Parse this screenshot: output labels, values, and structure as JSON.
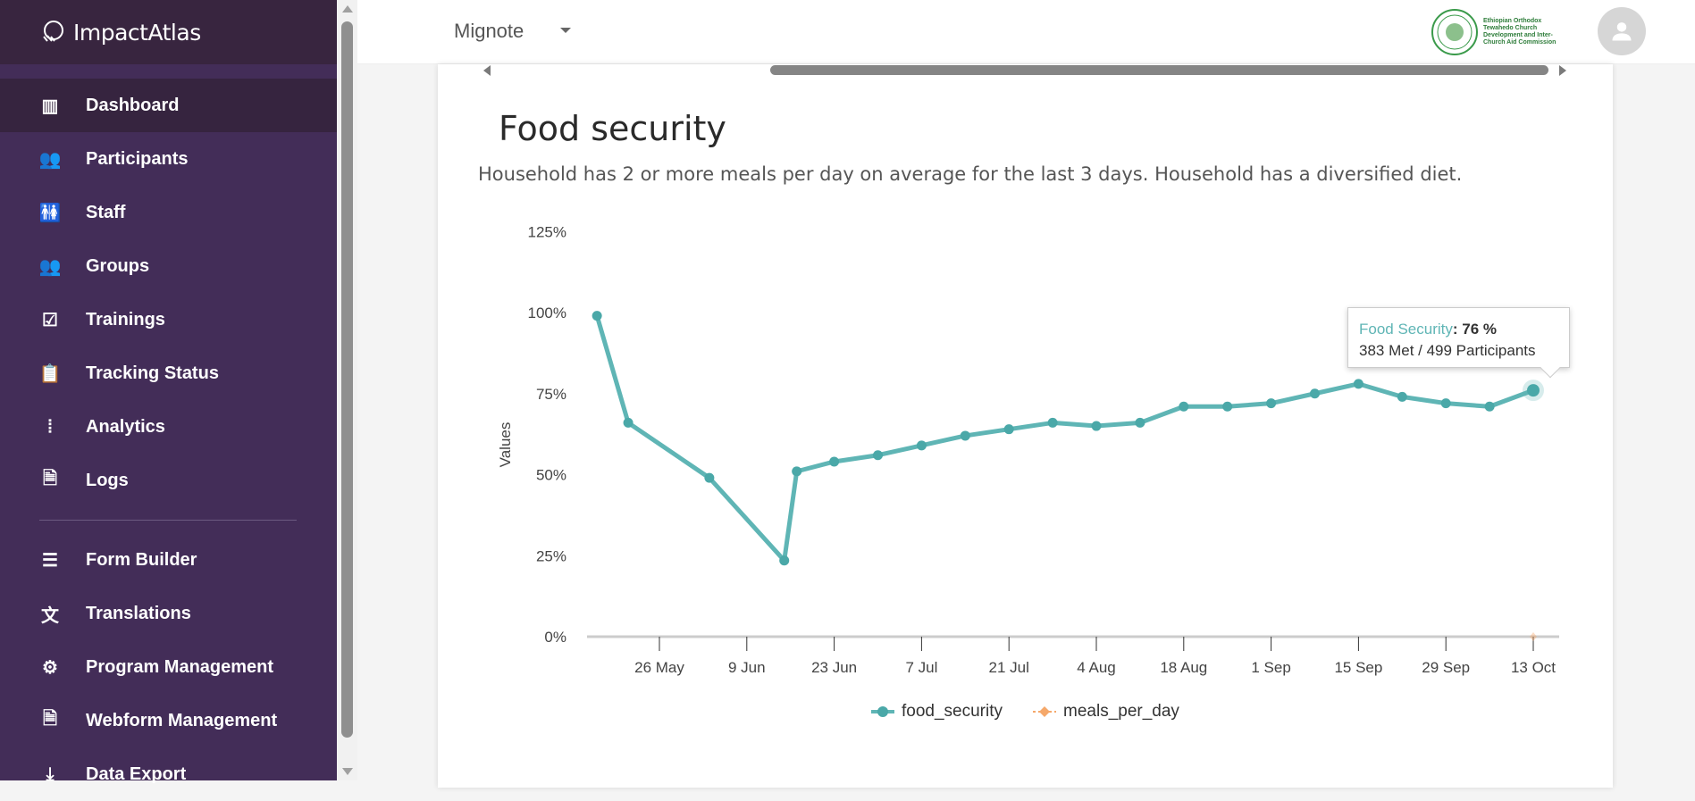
{
  "app": {
    "name": "ImpactAtlas"
  },
  "sidebar": {
    "items": [
      {
        "label": "Dashboard",
        "icon": "bar-chart-icon",
        "active": true
      },
      {
        "label": "Participants",
        "icon": "people-icon"
      },
      {
        "label": "Staff",
        "icon": "staff-icon"
      },
      {
        "label": "Groups",
        "icon": "groups-icon"
      },
      {
        "label": "Trainings",
        "icon": "clipboard-check-icon"
      },
      {
        "label": "Tracking Status",
        "icon": "clipboard-icon"
      },
      {
        "label": "Analytics",
        "icon": "waveform-icon"
      },
      {
        "label": "Logs",
        "icon": "document-icon"
      }
    ],
    "items2": [
      {
        "label": "Form Builder",
        "icon": "list-icon"
      },
      {
        "label": "Translations",
        "icon": "translate-icon"
      },
      {
        "label": "Program Management",
        "icon": "gear-icon"
      },
      {
        "label": "Webform Management",
        "icon": "document-icon"
      },
      {
        "label": "Data Export",
        "icon": "download-icon"
      }
    ]
  },
  "header": {
    "program": "Mignote",
    "org_logo_text": "Ethiopian Orthodox Tewahedo Church Development and Inter-Church Aid Commission"
  },
  "section": {
    "title": "Food security",
    "description": "Household has 2 or more meals per day on average for the last 3 days. Household has a diversified diet."
  },
  "tooltip": {
    "series": "Food Security",
    "value": "76 %",
    "detail": "383 Met / 499 Participants"
  },
  "colors": {
    "food_security": "#5fb5b5",
    "meals_per_day": "#f5a86a",
    "sidebar": "#432d58"
  },
  "chart_data": {
    "type": "line",
    "ylabel": "Values",
    "ylim": [
      0,
      125
    ],
    "yticks": [
      "0%",
      "25%",
      "50%",
      "75%",
      "100%",
      "125%"
    ],
    "xticks": [
      "26 May",
      "9 Jun",
      "23 Jun",
      "7 Jul",
      "21 Jul",
      "4 Aug",
      "18 Aug",
      "1 Sep",
      "15 Sep",
      "29 Sep",
      "13 Oct"
    ],
    "legend": "bottom",
    "grid": false,
    "series": [
      {
        "name": "food_security",
        "x": [
          "16 May",
          "21 May",
          "3 Jun",
          "15 Jun",
          "17 Jun",
          "23 Jun",
          "30 Jun",
          "7 Jul",
          "14 Jul",
          "21 Jul",
          "28 Jul",
          "4 Aug",
          "11 Aug",
          "18 Aug",
          "25 Aug",
          "1 Sep",
          "8 Sep",
          "15 Sep",
          "22 Sep",
          "29 Sep",
          "6 Oct",
          "13 Oct"
        ],
        "values": [
          99,
          66,
          49,
          23.5,
          51,
          54,
          56,
          59,
          62,
          64,
          66,
          65,
          66,
          71,
          71,
          72,
          75,
          78,
          74,
          72,
          71,
          76
        ]
      },
      {
        "name": "meals_per_day",
        "x": [
          "13 Oct"
        ],
        "values": [
          0
        ]
      }
    ]
  }
}
